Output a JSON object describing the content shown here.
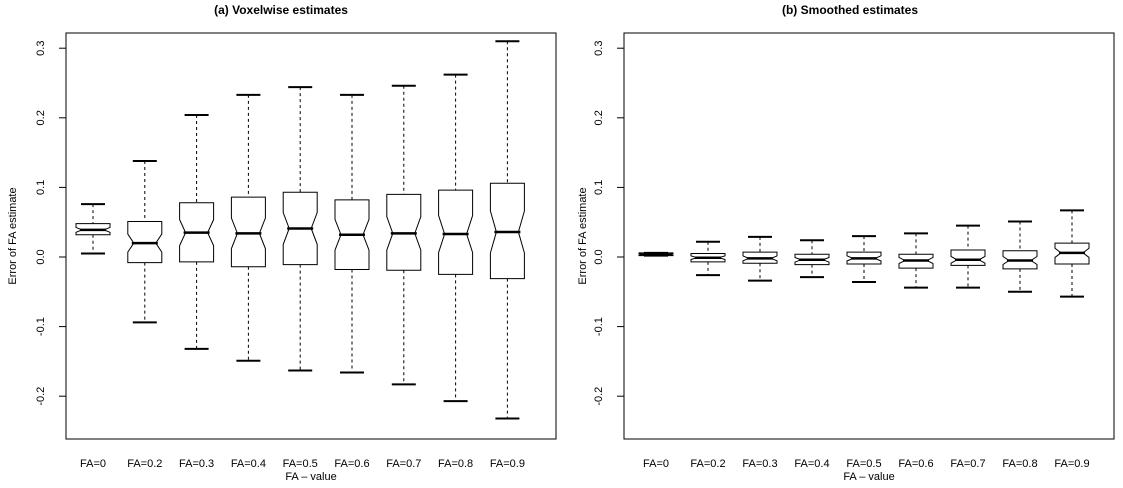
{
  "chart_data": [
    {
      "type": "boxplot",
      "title": "(a) Voxelwise estimates",
      "xlabel": "FA – value",
      "ylabel": "Error of FA estimate",
      "ylim": [
        -0.26,
        0.31
      ],
      "yticks": [
        -0.2,
        -0.1,
        0.0,
        0.1,
        0.2,
        0.3
      ],
      "ytick_labels": [
        "-0.2",
        "-0.1",
        "0.0",
        "0.1",
        "0.2",
        "0.3"
      ],
      "categories": [
        "FA=0",
        "FA=0.2",
        "FA=0.3",
        "FA=0.4",
        "FA=0.5",
        "FA=0.6",
        "FA=0.7",
        "FA=0.8",
        "FA=0.9"
      ],
      "notched": true,
      "boxes": [
        {
          "whisker_low": 0.005,
          "q1": 0.032,
          "median": 0.039,
          "q3": 0.048,
          "whisker_high": 0.076
        },
        {
          "whisker_low": -0.094,
          "q1": -0.008,
          "median": 0.02,
          "q3": 0.051,
          "whisker_high": 0.138
        },
        {
          "whisker_low": -0.132,
          "q1": -0.007,
          "median": 0.035,
          "q3": 0.078,
          "whisker_high": 0.204
        },
        {
          "whisker_low": -0.149,
          "q1": -0.014,
          "median": 0.034,
          "q3": 0.086,
          "whisker_high": 0.233
        },
        {
          "whisker_low": -0.163,
          "q1": -0.011,
          "median": 0.041,
          "q3": 0.093,
          "whisker_high": 0.244
        },
        {
          "whisker_low": -0.166,
          "q1": -0.018,
          "median": 0.032,
          "q3": 0.082,
          "whisker_high": 0.233
        },
        {
          "whisker_low": -0.183,
          "q1": -0.019,
          "median": 0.034,
          "q3": 0.09,
          "whisker_high": 0.246
        },
        {
          "whisker_low": -0.207,
          "q1": -0.025,
          "median": 0.033,
          "q3": 0.096,
          "whisker_high": 0.262
        },
        {
          "whisker_low": -0.232,
          "q1": -0.031,
          "median": 0.036,
          "q3": 0.106,
          "whisker_high": 0.31
        }
      ]
    },
    {
      "type": "boxplot",
      "title": "(b) Smoothed  estimates",
      "xlabel": "FA – value",
      "ylabel": "Error of FA estimate",
      "ylim": [
        -0.26,
        0.31
      ],
      "yticks": [
        -0.2,
        -0.1,
        0.0,
        0.1,
        0.2,
        0.3
      ],
      "ytick_labels": [
        "-0.2",
        "-0.1",
        "0.0",
        "0.1",
        "0.2",
        "0.3"
      ],
      "categories": [
        "FA=0",
        "FA=0.2",
        "FA=0.3",
        "FA=0.4",
        "FA=0.5",
        "FA=0.6",
        "FA=0.7",
        "FA=0.8",
        "FA=0.9"
      ],
      "notched": true,
      "boxes": [
        {
          "whisker_low": 0.002,
          "q1": 0.002,
          "median": 0.004,
          "q3": 0.006,
          "whisker_high": 0.006
        },
        {
          "whisker_low": -0.026,
          "q1": -0.007,
          "median": -0.001,
          "q3": 0.005,
          "whisker_high": 0.022
        },
        {
          "whisker_low": -0.034,
          "q1": -0.009,
          "median": -0.002,
          "q3": 0.007,
          "whisker_high": 0.029
        },
        {
          "whisker_low": -0.029,
          "q1": -0.011,
          "median": -0.004,
          "q3": 0.004,
          "whisker_high": 0.024
        },
        {
          "whisker_low": -0.036,
          "q1": -0.01,
          "median": -0.002,
          "q3": 0.007,
          "whisker_high": 0.03
        },
        {
          "whisker_low": -0.044,
          "q1": -0.016,
          "median": -0.005,
          "q3": 0.004,
          "whisker_high": 0.034
        },
        {
          "whisker_low": -0.044,
          "q1": -0.012,
          "median": -0.004,
          "q3": 0.01,
          "whisker_high": 0.045
        },
        {
          "whisker_low": -0.05,
          "q1": -0.017,
          "median": -0.005,
          "q3": 0.009,
          "whisker_high": 0.051
        },
        {
          "whisker_low": -0.057,
          "q1": -0.01,
          "median": 0.006,
          "q3": 0.02,
          "whisker_high": 0.067
        }
      ]
    }
  ]
}
